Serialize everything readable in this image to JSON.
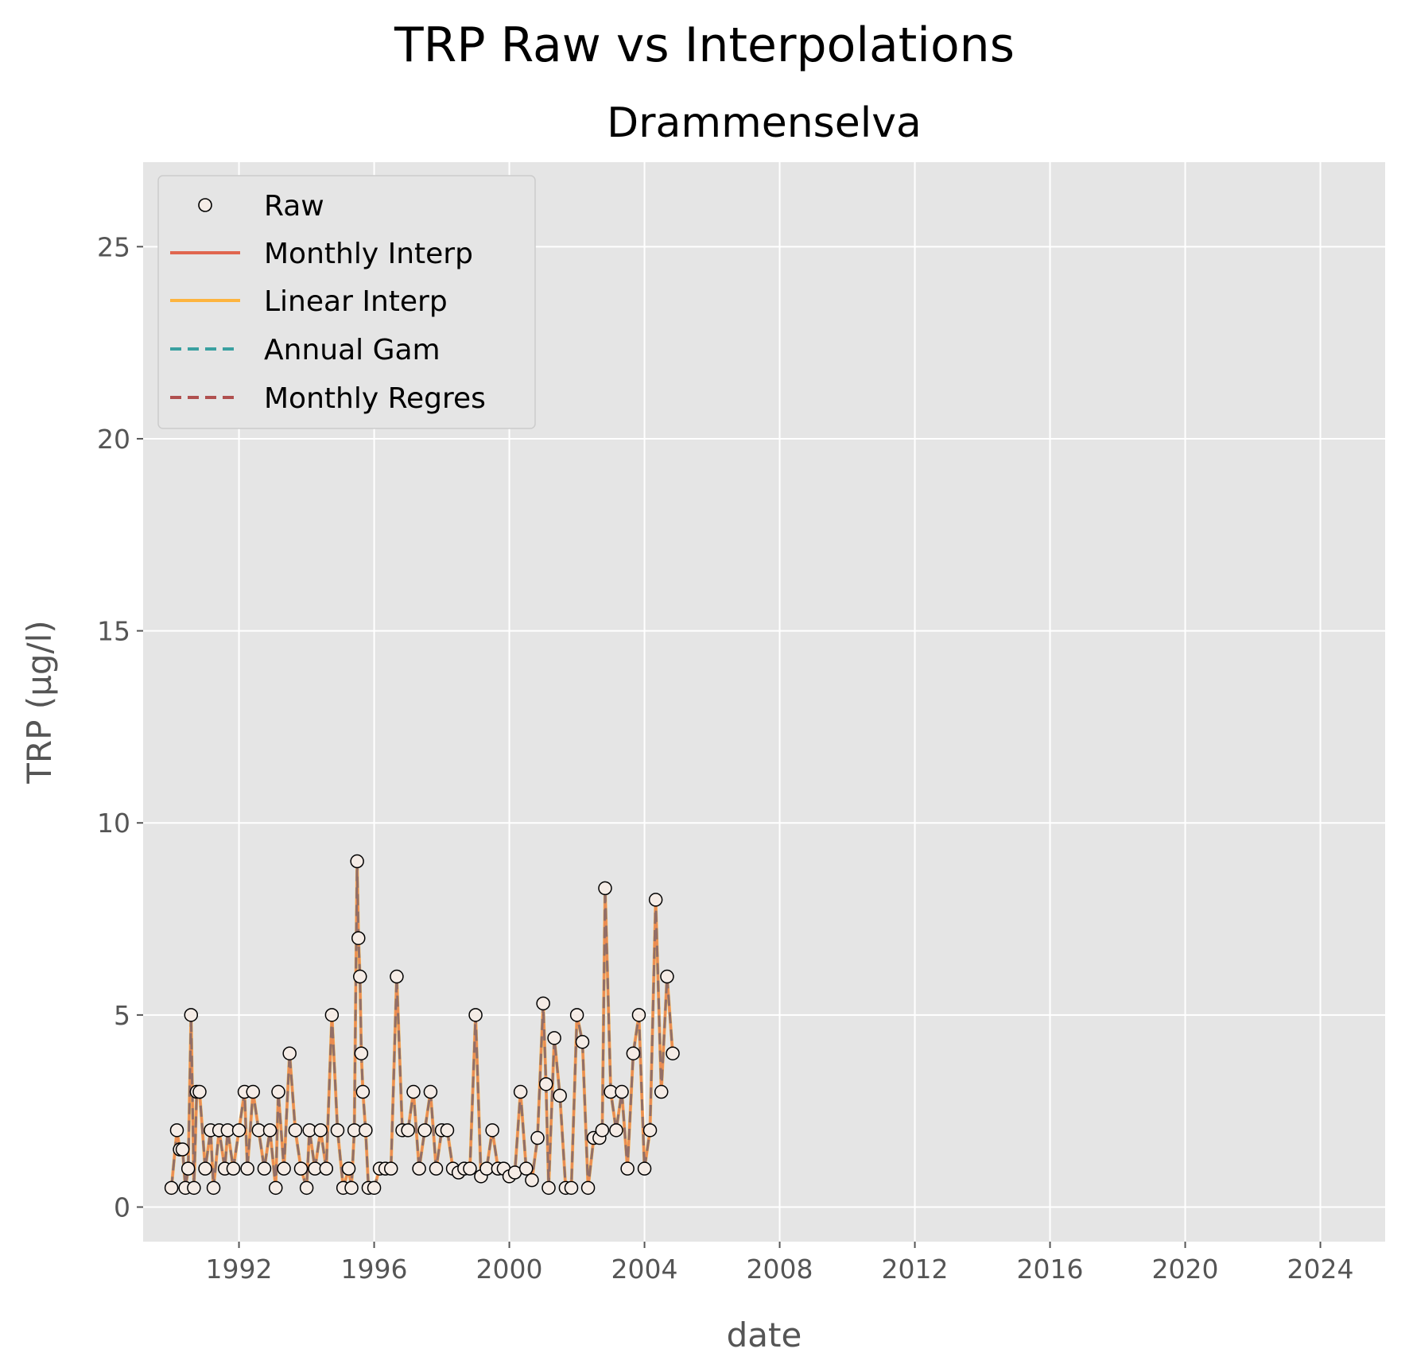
{
  "figure": {
    "suptitle": "TRP Raw vs Interpolations"
  },
  "chart_data": {
    "type": "line",
    "title": "Drammenselva",
    "xlabel": "date",
    "ylabel": "TRP (µg/l)",
    "xlim": [
      "1989-03-01",
      "2025-12-01"
    ],
    "ylim": [
      -0.9,
      27.2
    ],
    "x_ticks": [
      "1992",
      "1996",
      "2000",
      "2004",
      "2008",
      "2012",
      "2016",
      "2020",
      "2024"
    ],
    "y_ticks": [
      0,
      5,
      10,
      15,
      20,
      25
    ],
    "grid": true,
    "legend_position": "upper-left",
    "colors": {
      "background": "#e5e5e5",
      "grid": "#ffffff",
      "raw_face": "#f5ece6",
      "raw_edge": "#000000",
      "monthly_interp": "#e0664f",
      "linear_interp": "#fdb43f",
      "annual_gam": "#3aa0a0",
      "monthly_regres": "#b0504f"
    },
    "series": [
      {
        "name": "Raw",
        "style": "markers",
        "points": [
          [
            "1990-01-01",
            0.5
          ],
          [
            "1990-03-01",
            2
          ],
          [
            "1990-04-01",
            1.5
          ],
          [
            "1990-05-01",
            1.5
          ],
          [
            "1990-06-01",
            0.5
          ],
          [
            "1990-07-01",
            1
          ],
          [
            "1990-08-01",
            5
          ],
          [
            "1990-09-01",
            0.5
          ],
          [
            "1990-10-01",
            3
          ],
          [
            "1990-11-01",
            3
          ],
          [
            "1991-01-01",
            1
          ],
          [
            "1991-03-01",
            2
          ],
          [
            "1991-04-01",
            0.5
          ],
          [
            "1991-06-01",
            2
          ],
          [
            "1991-08-01",
            1
          ],
          [
            "1991-09-01",
            2
          ],
          [
            "1991-11-01",
            1
          ],
          [
            "1992-01-01",
            2
          ],
          [
            "1992-03-01",
            3
          ],
          [
            "1992-04-01",
            1
          ],
          [
            "1992-06-01",
            3
          ],
          [
            "1992-08-01",
            2
          ],
          [
            "1992-10-01",
            1
          ],
          [
            "1992-12-01",
            2
          ],
          [
            "1993-02-01",
            0.5
          ],
          [
            "1993-03-01",
            3
          ],
          [
            "1993-05-01",
            1
          ],
          [
            "1993-07-01",
            4
          ],
          [
            "1993-09-01",
            2
          ],
          [
            "1993-11-01",
            1
          ],
          [
            "1994-01-01",
            0.5
          ],
          [
            "1994-02-01",
            2
          ],
          [
            "1994-04-01",
            1
          ],
          [
            "1994-06-01",
            2
          ],
          [
            "1994-08-01",
            1
          ],
          [
            "1994-10-01",
            5
          ],
          [
            "1994-12-01",
            2
          ],
          [
            "1995-02-01",
            0.5
          ],
          [
            "1995-04-01",
            1
          ],
          [
            "1995-05-01",
            0.5
          ],
          [
            "1995-06-01",
            2
          ],
          [
            "1995-07-01",
            9
          ],
          [
            "1995-07-15",
            7
          ],
          [
            "1995-08-01",
            6
          ],
          [
            "1995-08-15",
            4
          ],
          [
            "1995-09-01",
            3
          ],
          [
            "1995-10-01",
            2
          ],
          [
            "1995-11-01",
            0.5
          ],
          [
            "1996-01-01",
            0.5
          ],
          [
            "1996-03-01",
            1
          ],
          [
            "1996-05-01",
            1
          ],
          [
            "1996-07-01",
            1
          ],
          [
            "1996-09-01",
            6
          ],
          [
            "1996-11-01",
            2
          ],
          [
            "1997-01-01",
            2
          ],
          [
            "1997-03-01",
            3
          ],
          [
            "1997-05-01",
            1
          ],
          [
            "1997-07-01",
            2
          ],
          [
            "1997-09-01",
            3
          ],
          [
            "1997-11-01",
            1
          ],
          [
            "1998-01-01",
            2
          ],
          [
            "1998-03-01",
            2
          ],
          [
            "1998-05-01",
            1
          ],
          [
            "1998-07-01",
            0.9
          ],
          [
            "1998-09-01",
            1
          ],
          [
            "1998-11-01",
            1
          ],
          [
            "1999-01-01",
            5
          ],
          [
            "1999-03-01",
            0.8
          ],
          [
            "1999-05-01",
            1
          ],
          [
            "1999-07-01",
            2
          ],
          [
            "1999-09-01",
            1
          ],
          [
            "1999-11-01",
            1
          ],
          [
            "2000-01-01",
            0.8
          ],
          [
            "2000-03-01",
            0.9
          ],
          [
            "2000-05-01",
            3
          ],
          [
            "2000-07-01",
            1
          ],
          [
            "2000-09-01",
            0.7
          ],
          [
            "2000-11-01",
            1.8
          ],
          [
            "2001-01-01",
            5.3
          ],
          [
            "2001-02-01",
            3.2
          ],
          [
            "2001-03-01",
            0.5
          ],
          [
            "2001-05-01",
            4.4
          ],
          [
            "2001-07-01",
            2.9
          ],
          [
            "2001-09-01",
            0.5
          ],
          [
            "2001-11-01",
            0.5
          ],
          [
            "2002-01-01",
            5
          ],
          [
            "2002-03-01",
            4.3
          ],
          [
            "2002-05-01",
            0.5
          ],
          [
            "2002-07-01",
            1.8
          ],
          [
            "2002-09-01",
            1.8
          ],
          [
            "2002-10-01",
            2
          ],
          [
            "2002-11-01",
            8.3
          ],
          [
            "2003-01-01",
            3
          ],
          [
            "2003-03-01",
            2
          ],
          [
            "2003-05-01",
            3
          ],
          [
            "2003-07-01",
            1
          ],
          [
            "2003-09-01",
            4
          ],
          [
            "2003-11-01",
            5
          ],
          [
            "2004-01-01",
            1
          ],
          [
            "2004-03-01",
            2
          ],
          [
            "2004-05-01",
            8
          ],
          [
            "2004-07-01",
            3
          ],
          [
            "2004-09-01",
            6
          ],
          [
            "2004-11-01",
            4
          ]
        ]
      },
      {
        "name": "Monthly Interp",
        "style": "solid"
      },
      {
        "name": "Linear Interp",
        "style": "solid"
      },
      {
        "name": "Annual Gam",
        "style": "dashed"
      },
      {
        "name": "Monthly Regres",
        "style": "dashed"
      }
    ]
  }
}
